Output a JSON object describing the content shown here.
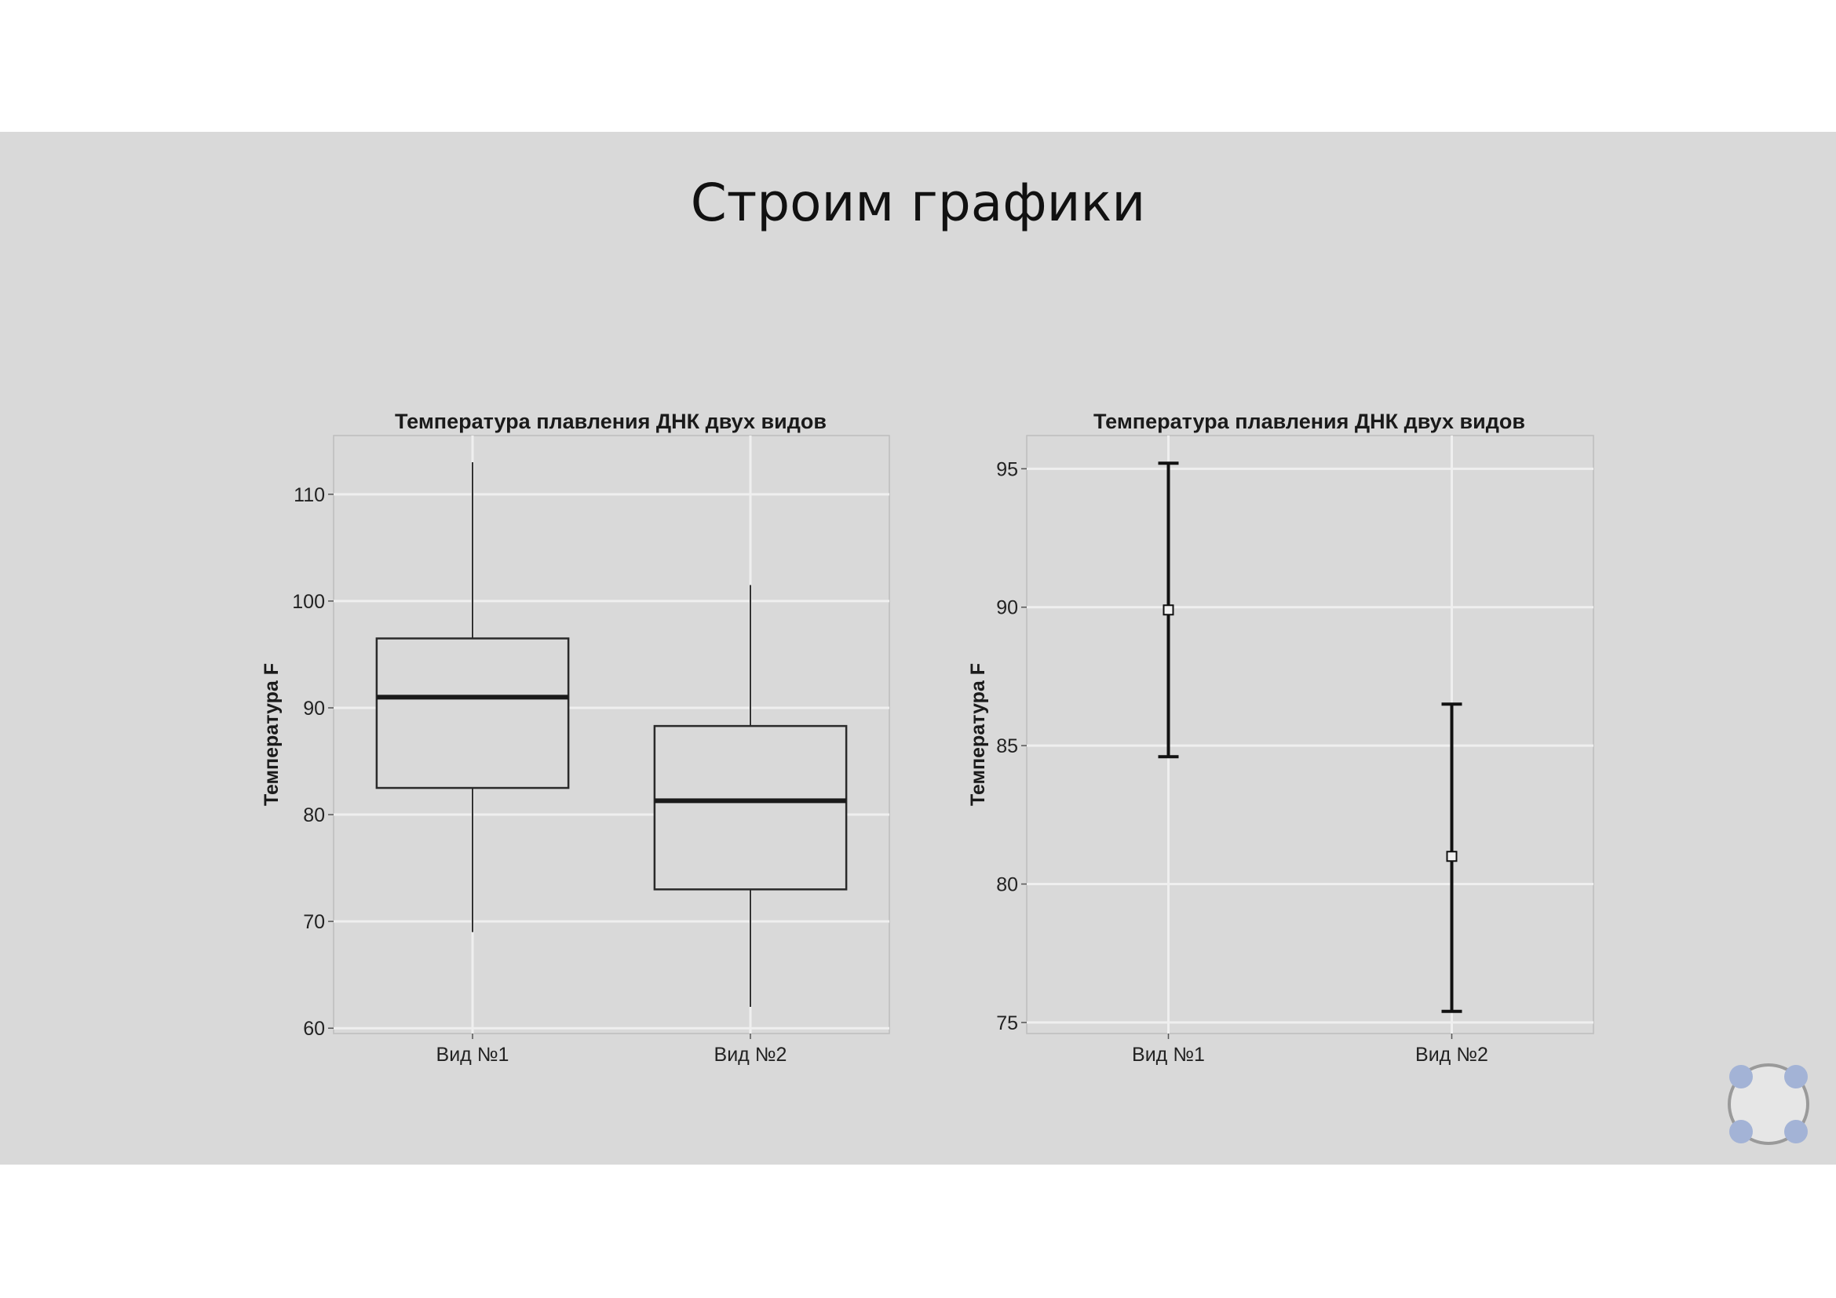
{
  "slide": {
    "title": "Строим графики"
  },
  "chart_data": [
    {
      "type": "box",
      "title": "Температура плавления ДНК двух видов",
      "xlabel": "",
      "ylabel": "Температура F",
      "ylim": [
        59.5,
        115.5
      ],
      "yticks": [
        60,
        70,
        80,
        90,
        100,
        110
      ],
      "grid": true,
      "categories": [
        "Вид №1",
        "Вид №2"
      ],
      "boxes": [
        {
          "category": "Вид №1",
          "min": 69,
          "q1": 82.5,
          "median": 91,
          "q3": 96.5,
          "max": 113
        },
        {
          "category": "Вид №2",
          "min": 62,
          "q1": 73,
          "median": 81.3,
          "q3": 88.3,
          "max": 101.5
        }
      ]
    },
    {
      "type": "errorbar",
      "title": "Температура плавления ДНК двух видов",
      "xlabel": "",
      "ylabel": "Температура F",
      "ylim": [
        74.6,
        96.2
      ],
      "yticks": [
        75,
        80,
        85,
        90,
        95
      ],
      "grid": true,
      "categories": [
        "Вид №1",
        "Вид №2"
      ],
      "points": [
        {
          "category": "Вид №1",
          "mean": 89.9,
          "lower": 84.6,
          "upper": 95.2
        },
        {
          "category": "Вид №2",
          "mean": 81.0,
          "lower": 75.4,
          "upper": 86.5
        }
      ]
    }
  ],
  "colors": {
    "slide_bg": "#d9d9d9",
    "panel_bg": "#d9d9d9",
    "panel_border": "#bdbdbd",
    "grid": "#efefef",
    "ink": "#222222"
  },
  "icons": {
    "nav": "navigation-widget-icon"
  }
}
